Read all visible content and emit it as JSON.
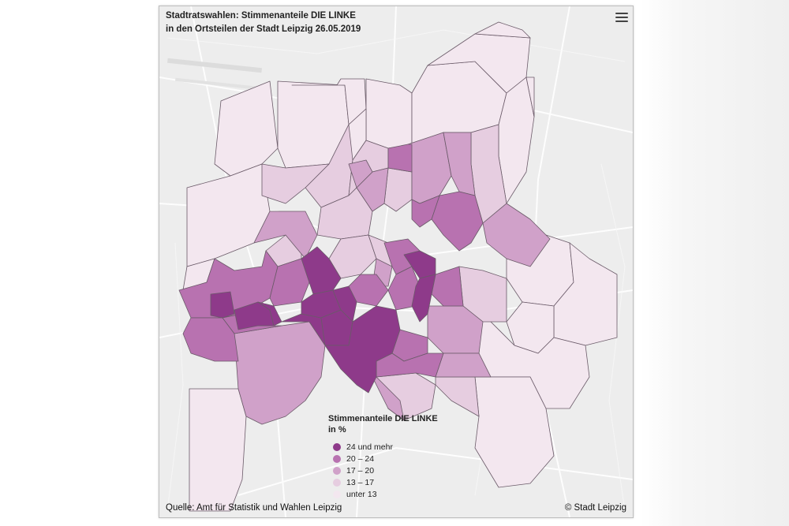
{
  "map": {
    "title_line1": "Stadtratswahlen: Stimmenanteile DIE LINKE",
    "title_line2": "in den Ortsteilen der Stadt Leipzig 26.05.2019",
    "legend": {
      "title_line1": "Stimmenanteile DIE LINKE",
      "title_line2": "in %",
      "items": [
        {
          "label": "24 und mehr",
          "color": "#8e3a8a"
        },
        {
          "label": "20 – 24",
          "color": "#b872b0"
        },
        {
          "label": "17 – 20",
          "color": "#d0a1c9"
        },
        {
          "label": "13 – 17",
          "color": "#e6cde0"
        },
        {
          "label": "unter 13",
          "color": "#f3e7ef"
        }
      ]
    },
    "source": "Quelle: Amt für Statistik und Wahlen Leipzig",
    "copyright": "© Stadt Leipzig",
    "menu_icon": "hamburger-menu-icon"
  }
}
